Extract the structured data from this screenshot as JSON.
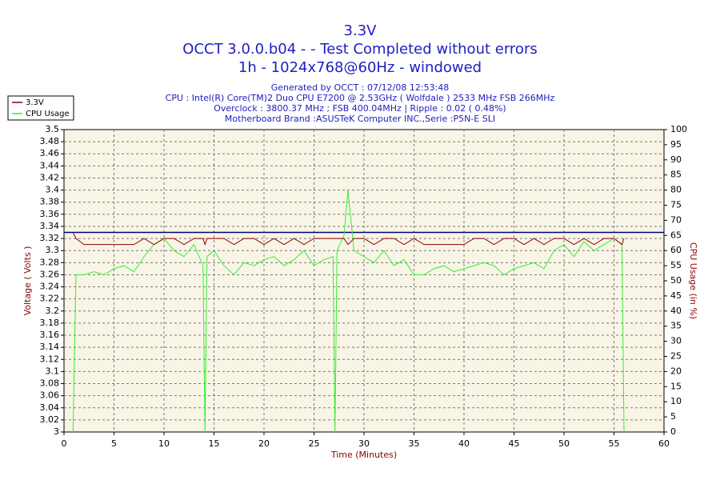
{
  "chart_data": {
    "type": "line",
    "title": "3.3V",
    "subtitle": [
      "OCCT 3.0.0.b04 -  - Test Completed without errors",
      "1h - 1024x768@60Hz - windowed"
    ],
    "info": [
      "Generated by OCCT : 07/12/08 12:53:48",
      "CPU : Intel(R) Core(TM)2 Duo CPU E7200 @ 2.53GHz ( Wolfdale ) 2533 MHz FSB 266MHz",
      "Overclock : 3800.37 MHz ; FSB 400.04MHz | Ripple : 0.02 ( 0.48%)",
      "Motherboard Brand :ASUSTeK Computer INC.,Serie :P5N-E SLI"
    ],
    "x_label": "Time (Minutes)",
    "y_label": "Voltage ( Volts )",
    "y2_label": "CPU Usage (in %)",
    "x": [
      0.9,
      1.2,
      2,
      3,
      4,
      5,
      6,
      7,
      8,
      9,
      10,
      11,
      12,
      13,
      13.9,
      14.1,
      14.3,
      15,
      16,
      17,
      18,
      19,
      20,
      21,
      22,
      23,
      24,
      25,
      26,
      26.9,
      27.1,
      27.3,
      28,
      28.4,
      29,
      30,
      31,
      32,
      33,
      34,
      35,
      36,
      37,
      38,
      39,
      40,
      41,
      42,
      43,
      44,
      45,
      46,
      47,
      48,
      49,
      50,
      51,
      52,
      53,
      54,
      55,
      55.8,
      56
    ],
    "series": [
      {
        "name": "3.3V",
        "color": "#8b0000",
        "axis": "y",
        "values": [
          3.33,
          3.32,
          3.31,
          3.31,
          3.31,
          3.31,
          3.31,
          3.31,
          3.32,
          3.31,
          3.32,
          3.32,
          3.31,
          3.32,
          3.32,
          3.31,
          3.32,
          3.32,
          3.32,
          3.31,
          3.32,
          3.32,
          3.31,
          3.32,
          3.31,
          3.32,
          3.31,
          3.32,
          3.32,
          3.32,
          3.32,
          3.32,
          3.32,
          3.31,
          3.32,
          3.32,
          3.31,
          3.32,
          3.32,
          3.31,
          3.32,
          3.31,
          3.31,
          3.31,
          3.31,
          3.31,
          3.32,
          3.32,
          3.31,
          3.32,
          3.32,
          3.31,
          3.32,
          3.31,
          3.32,
          3.32,
          3.31,
          3.32,
          3.31,
          3.32,
          3.32,
          3.31,
          3.32
        ]
      },
      {
        "name": "CPU Usage",
        "color": "#33ee33",
        "axis": "y2",
        "values": [
          0,
          52,
          52,
          53,
          52,
          54,
          55,
          53,
          58,
          62,
          64,
          60,
          58,
          62,
          55,
          0,
          58,
          60,
          55,
          52,
          56,
          55,
          57,
          58,
          55,
          57,
          60,
          55,
          57,
          58,
          0,
          60,
          65,
          80,
          60,
          58,
          56,
          60,
          55,
          57,
          52,
          52,
          54,
          55,
          53,
          54,
          55,
          56,
          55,
          52,
          54,
          55,
          56,
          54,
          60,
          62,
          58,
          63,
          60,
          62,
          64,
          62,
          0
        ]
      }
    ],
    "reference_line": {
      "value": 3.33,
      "color": "#000080"
    },
    "xlim": [
      0,
      60
    ],
    "xticks": [
      0,
      5,
      10,
      15,
      20,
      25,
      30,
      35,
      40,
      45,
      50,
      55,
      60
    ],
    "ylim": [
      3,
      3.5
    ],
    "yticks": [
      3,
      3.02,
      3.04,
      3.06,
      3.08,
      3.1,
      3.12,
      3.14,
      3.16,
      3.18,
      3.2,
      3.22,
      3.24,
      3.26,
      3.28,
      3.3,
      3.32,
      3.34,
      3.36,
      3.38,
      3.4,
      3.42,
      3.44,
      3.46,
      3.48,
      3.5
    ],
    "y2lim": [
      0,
      100
    ],
    "y2ticks": [
      0,
      5,
      10,
      15,
      20,
      25,
      30,
      35,
      40,
      45,
      50,
      55,
      60,
      65,
      70,
      75,
      80,
      85,
      90,
      95,
      100
    ],
    "grid": true,
    "legend": "top-left"
  }
}
